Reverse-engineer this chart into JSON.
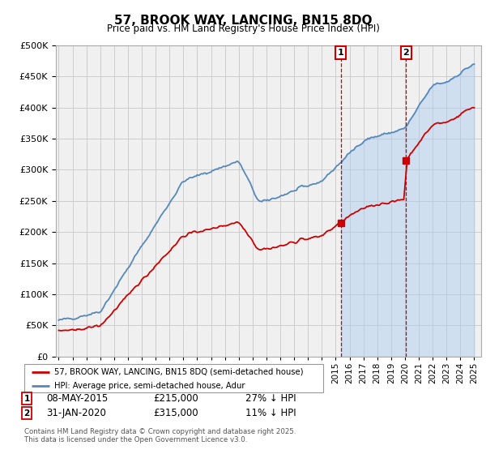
{
  "title": "57, BROOK WAY, LANCING, BN15 8DQ",
  "subtitle": "Price paid vs. HM Land Registry's House Price Index (HPI)",
  "ylim": [
    0,
    500000
  ],
  "yticks": [
    0,
    50000,
    100000,
    150000,
    200000,
    250000,
    300000,
    350000,
    400000,
    450000,
    500000
  ],
  "xlim_start": 1994.8,
  "xlim_end": 2025.5,
  "sale1_date": 2015.36,
  "sale1_price": 215000,
  "sale1_label": "1",
  "sale2_date": 2020.08,
  "sale2_price": 315000,
  "sale2_label": "2",
  "legend_line1": "57, BROOK WAY, LANCING, BN15 8DQ (semi-detached house)",
  "legend_line2": "HPI: Average price, semi-detached house, Adur",
  "footer": "Contains HM Land Registry data © Crown copyright and database right 2025.\nThis data is licensed under the Open Government Licence v3.0.",
  "line_color_red": "#cc0000",
  "line_color_blue": "#5588bb",
  "shade_color": "#aaccee",
  "grid_color": "#cccccc",
  "background_color": "#f0f0f0"
}
